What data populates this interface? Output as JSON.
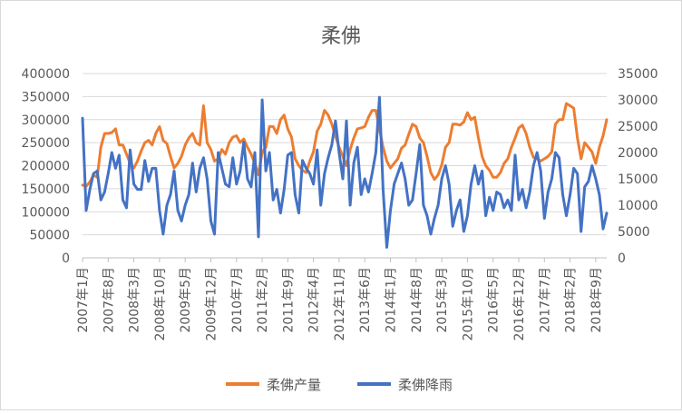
{
  "chart_data": {
    "type": "line",
    "title": "柔佛",
    "x_tick_labels": [
      "2007年1月",
      "2007年8月",
      "2008年3月",
      "2008年10月",
      "2009年5月",
      "2009年12月",
      "2010年7月",
      "2011年2月",
      "2011年9月",
      "2012年4月",
      "2012年11月",
      "2013年6月",
      "2014年1月",
      "2014年8月",
      "2015年3月",
      "2015年10月",
      "2016年5月",
      "2016年12月",
      "2017年7月",
      "2018年2月",
      "2018年9月"
    ],
    "y_left": {
      "min": 0,
      "max": 400000,
      "ticks": [
        "0",
        "50000",
        "100000",
        "150000",
        "200000",
        "250000",
        "300000",
        "350000",
        "400000"
      ]
    },
    "y_right": {
      "min": 0,
      "max": 35000,
      "ticks": [
        "0",
        "5000",
        "10000",
        "15000",
        "20000",
        "25000",
        "30000",
        "35000"
      ]
    },
    "grid": true,
    "legend_position": "bottom",
    "series": [
      {
        "name": "柔佛产量",
        "axis": "left",
        "color": "#ED7D31",
        "values": [
          158000,
          155000,
          165000,
          180000,
          175000,
          240000,
          270000,
          270000,
          272000,
          280000,
          245000,
          245000,
          225000,
          205000,
          195000,
          210000,
          232000,
          250000,
          255000,
          245000,
          270000,
          285000,
          255000,
          248000,
          220000,
          195000,
          205000,
          220000,
          245000,
          260000,
          270000,
          250000,
          245000,
          330000,
          250000,
          235000,
          210000,
          215000,
          235000,
          225000,
          250000,
          262000,
          265000,
          250000,
          258000,
          240000,
          225000,
          205000,
          180000,
          230000,
          240000,
          285000,
          285000,
          270000,
          300000,
          310000,
          280000,
          262000,
          215000,
          200000,
          190000,
          185000,
          210000,
          230000,
          275000,
          290000,
          320000,
          310000,
          290000,
          265000,
          240000,
          220000,
          200000,
          235000,
          260000,
          280000,
          282000,
          285000,
          305000,
          320000,
          320000,
          280000,
          240000,
          210000,
          195000,
          205000,
          215000,
          238000,
          245000,
          268000,
          290000,
          285000,
          260000,
          250000,
          220000,
          185000,
          170000,
          180000,
          202000,
          240000,
          250000,
          290000,
          290000,
          288000,
          295000,
          315000,
          300000,
          305000,
          260000,
          220000,
          200000,
          190000,
          175000,
          175000,
          185000,
          205000,
          215000,
          240000,
          260000,
          282000,
          288000,
          270000,
          240000,
          218000,
          215000,
          210000,
          215000,
          220000,
          230000,
          290000,
          300000,
          300000,
          335000,
          330000,
          325000,
          260000,
          215000,
          250000,
          240000,
          230000,
          205000,
          240000,
          265000,
          300000
        ]
      },
      {
        "name": "柔佛降雨",
        "axis": "right",
        "color": "#4472C4",
        "values": [
          26500,
          9000,
          13000,
          16000,
          16500,
          11000,
          12500,
          16000,
          20000,
          17000,
          19500,
          11000,
          9500,
          20500,
          14000,
          13000,
          13000,
          18500,
          14500,
          17000,
          17000,
          9000,
          4500,
          10000,
          12000,
          16500,
          9000,
          7000,
          10000,
          12000,
          18000,
          12500,
          17000,
          19000,
          15000,
          7000,
          4500,
          20000,
          17000,
          14000,
          13500,
          19000,
          14000,
          16500,
          22000,
          15000,
          13500,
          20000,
          4000,
          30000,
          16500,
          20000,
          11000,
          13000,
          8500,
          13000,
          19500,
          20000,
          12000,
          8500,
          18500,
          17000,
          16000,
          14000,
          20500,
          10000,
          16000,
          19000,
          21500,
          26000,
          20000,
          15000,
          26000,
          10000,
          18000,
          21000,
          12000,
          15000,
          12500,
          16000,
          20000,
          30500,
          13000,
          2000,
          9000,
          14000,
          16000,
          18000,
          15000,
          10000,
          11000,
          16000,
          21500,
          10000,
          8000,
          4500,
          7500,
          10000,
          15000,
          17500,
          14000,
          6000,
          9000,
          11000,
          5000,
          8000,
          14000,
          17500,
          14000,
          16500,
          8000,
          11500,
          9000,
          12500,
          12000,
          9500,
          11000,
          9000,
          19500,
          11000,
          13000,
          9500,
          12500,
          17500,
          20000,
          16500,
          7500,
          12500,
          15000,
          20000,
          19000,
          12000,
          8000,
          12000,
          17000,
          16000,
          5000,
          13500,
          14500,
          17500,
          15000,
          12000,
          5500,
          8500
        ]
      }
    ]
  }
}
